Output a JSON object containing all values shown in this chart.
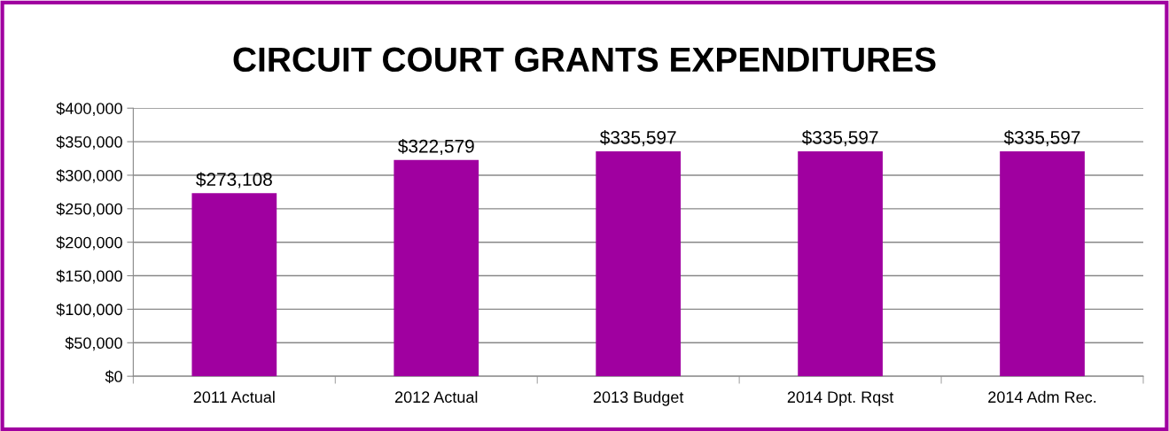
{
  "chart_data": {
    "type": "bar",
    "title": "CIRCUIT COURT GRANTS EXPENDITURES",
    "categories": [
      "2011 Actual",
      "2012 Actual",
      "2013 Budget",
      "2014 Dpt. Rqst",
      "2014 Adm Rec."
    ],
    "values": [
      273108,
      322579,
      335597,
      335597,
      335597
    ],
    "value_labels": [
      "$273,108",
      "$322,579",
      "$335,597",
      "$335,597",
      "$335,597"
    ],
    "color": "#a000a0",
    "ylim": [
      0,
      400000
    ],
    "yticks": [
      {
        "value": 0,
        "label": "$0"
      },
      {
        "value": 50000,
        "label": "$50,000"
      },
      {
        "value": 100000,
        "label": "$100,000"
      },
      {
        "value": 150000,
        "label": "$150,000"
      },
      {
        "value": 200000,
        "label": "$200,000"
      },
      {
        "value": 250000,
        "label": "$250,000"
      },
      {
        "value": 300000,
        "label": "$300,000"
      },
      {
        "value": 350000,
        "label": "$350,000"
      },
      {
        "value": 400000,
        "label": "$400,000"
      }
    ],
    "grid": "y",
    "legend": false
  }
}
